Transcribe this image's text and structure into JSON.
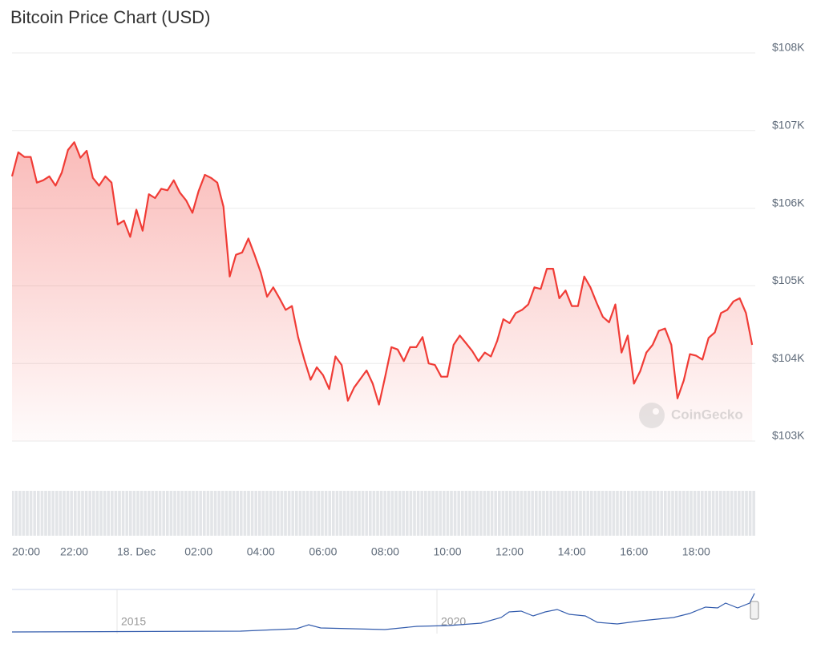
{
  "chart_data": {
    "type": "area-line",
    "title": "Bitcoin Price Chart (USD)",
    "watermark": "CoinGecko",
    "color": "#f03c36",
    "grid": true,
    "xlim": [
      20,
      43.9
    ],
    "ylim": [
      103000,
      108000
    ],
    "yticks": [
      {
        "value": 103000,
        "label": "$103K"
      },
      {
        "value": 104000,
        "label": "$104K"
      },
      {
        "value": 105000,
        "label": "$105K"
      },
      {
        "value": 106000,
        "label": "$106K"
      },
      {
        "value": 107000,
        "label": "$107K"
      },
      {
        "value": 108000,
        "label": "$108K"
      }
    ],
    "xticks": [
      {
        "value": 20,
        "label": "20:00"
      },
      {
        "value": 22,
        "label": "22:00"
      },
      {
        "value": 24,
        "label": "18. Dec"
      },
      {
        "value": 26,
        "label": "02:00"
      },
      {
        "value": 28,
        "label": "04:00"
      },
      {
        "value": 30,
        "label": "06:00"
      },
      {
        "value": 32,
        "label": "08:00"
      },
      {
        "value": 34,
        "label": "10:00"
      },
      {
        "value": 36,
        "label": "12:00"
      },
      {
        "value": 38,
        "label": "14:00"
      },
      {
        "value": 40,
        "label": "16:00"
      },
      {
        "value": 42,
        "label": "18:00"
      }
    ],
    "x": [
      20,
      20.2,
      20.4,
      20.6,
      20.8,
      21,
      21.2,
      21.4,
      21.6,
      21.8,
      22,
      22.2,
      22.4,
      22.6,
      22.8,
      23,
      23.2,
      23.4,
      23.6,
      23.8,
      24,
      24.2,
      24.4,
      24.6,
      24.8,
      25,
      25.2,
      25.4,
      25.6,
      25.8,
      26,
      26.2,
      26.4,
      26.6,
      26.8,
      27,
      27.2,
      27.4,
      27.6,
      27.8,
      28,
      28.2,
      28.4,
      28.6,
      28.8,
      29,
      29.2,
      29.4,
      29.6,
      29.8,
      30,
      30.2,
      30.4,
      30.6,
      30.8,
      31,
      31.2,
      31.4,
      31.6,
      31.8,
      32,
      32.2,
      32.4,
      32.6,
      32.8,
      33,
      33.2,
      33.4,
      33.6,
      33.8,
      34,
      34.2,
      34.4,
      34.6,
      34.8,
      35,
      35.2,
      35.4,
      35.6,
      35.8,
      36,
      36.2,
      36.4,
      36.6,
      36.8,
      37,
      37.2,
      37.4,
      37.6,
      37.8,
      38,
      38.2,
      38.4,
      38.6,
      38.8,
      39,
      39.2,
      39.4,
      39.6,
      39.8,
      40,
      40.2,
      40.4,
      40.6,
      40.8,
      41,
      41.2,
      41.4,
      41.6,
      41.8,
      42,
      42.2,
      42.4,
      42.6,
      42.8,
      43,
      43.2,
      43.4,
      43.6,
      43.8
    ],
    "values": [
      106410,
      106720,
      106660,
      106660,
      106330,
      106360,
      106410,
      106290,
      106460,
      106750,
      106850,
      106650,
      106740,
      106390,
      106290,
      106410,
      106330,
      105790,
      105840,
      105630,
      105980,
      105710,
      106180,
      106130,
      106250,
      106230,
      106360,
      106200,
      106100,
      105940,
      106220,
      106430,
      106390,
      106330,
      106020,
      105120,
      105400,
      105430,
      105610,
      105400,
      105170,
      104860,
      104980,
      104840,
      104690,
      104740,
      104340,
      104050,
      103790,
      103950,
      103850,
      103670,
      104090,
      103980,
      103520,
      103690,
      103800,
      103910,
      103740,
      103470,
      103830,
      104210,
      104180,
      104030,
      104210,
      104210,
      104340,
      104000,
      103980,
      103830,
      103830,
      104240,
      104360,
      104260,
      104160,
      104030,
      104140,
      104090,
      104290,
      104570,
      104520,
      104650,
      104690,
      104760,
      104980,
      104960,
      105220,
      105220,
      104840,
      104940,
      104740,
      104740,
      105120,
      104980,
      104780,
      104600,
      104530,
      104760,
      104140,
      104360,
      103740,
      103900,
      104140,
      104240,
      104420,
      104450,
      104240,
      103550,
      103780,
      104120,
      104100,
      104050,
      104330,
      104400,
      104650,
      104690,
      104800,
      104840,
      104650,
      104240
    ],
    "navigator": {
      "labels": [
        "2015",
        "2020"
      ]
    }
  }
}
